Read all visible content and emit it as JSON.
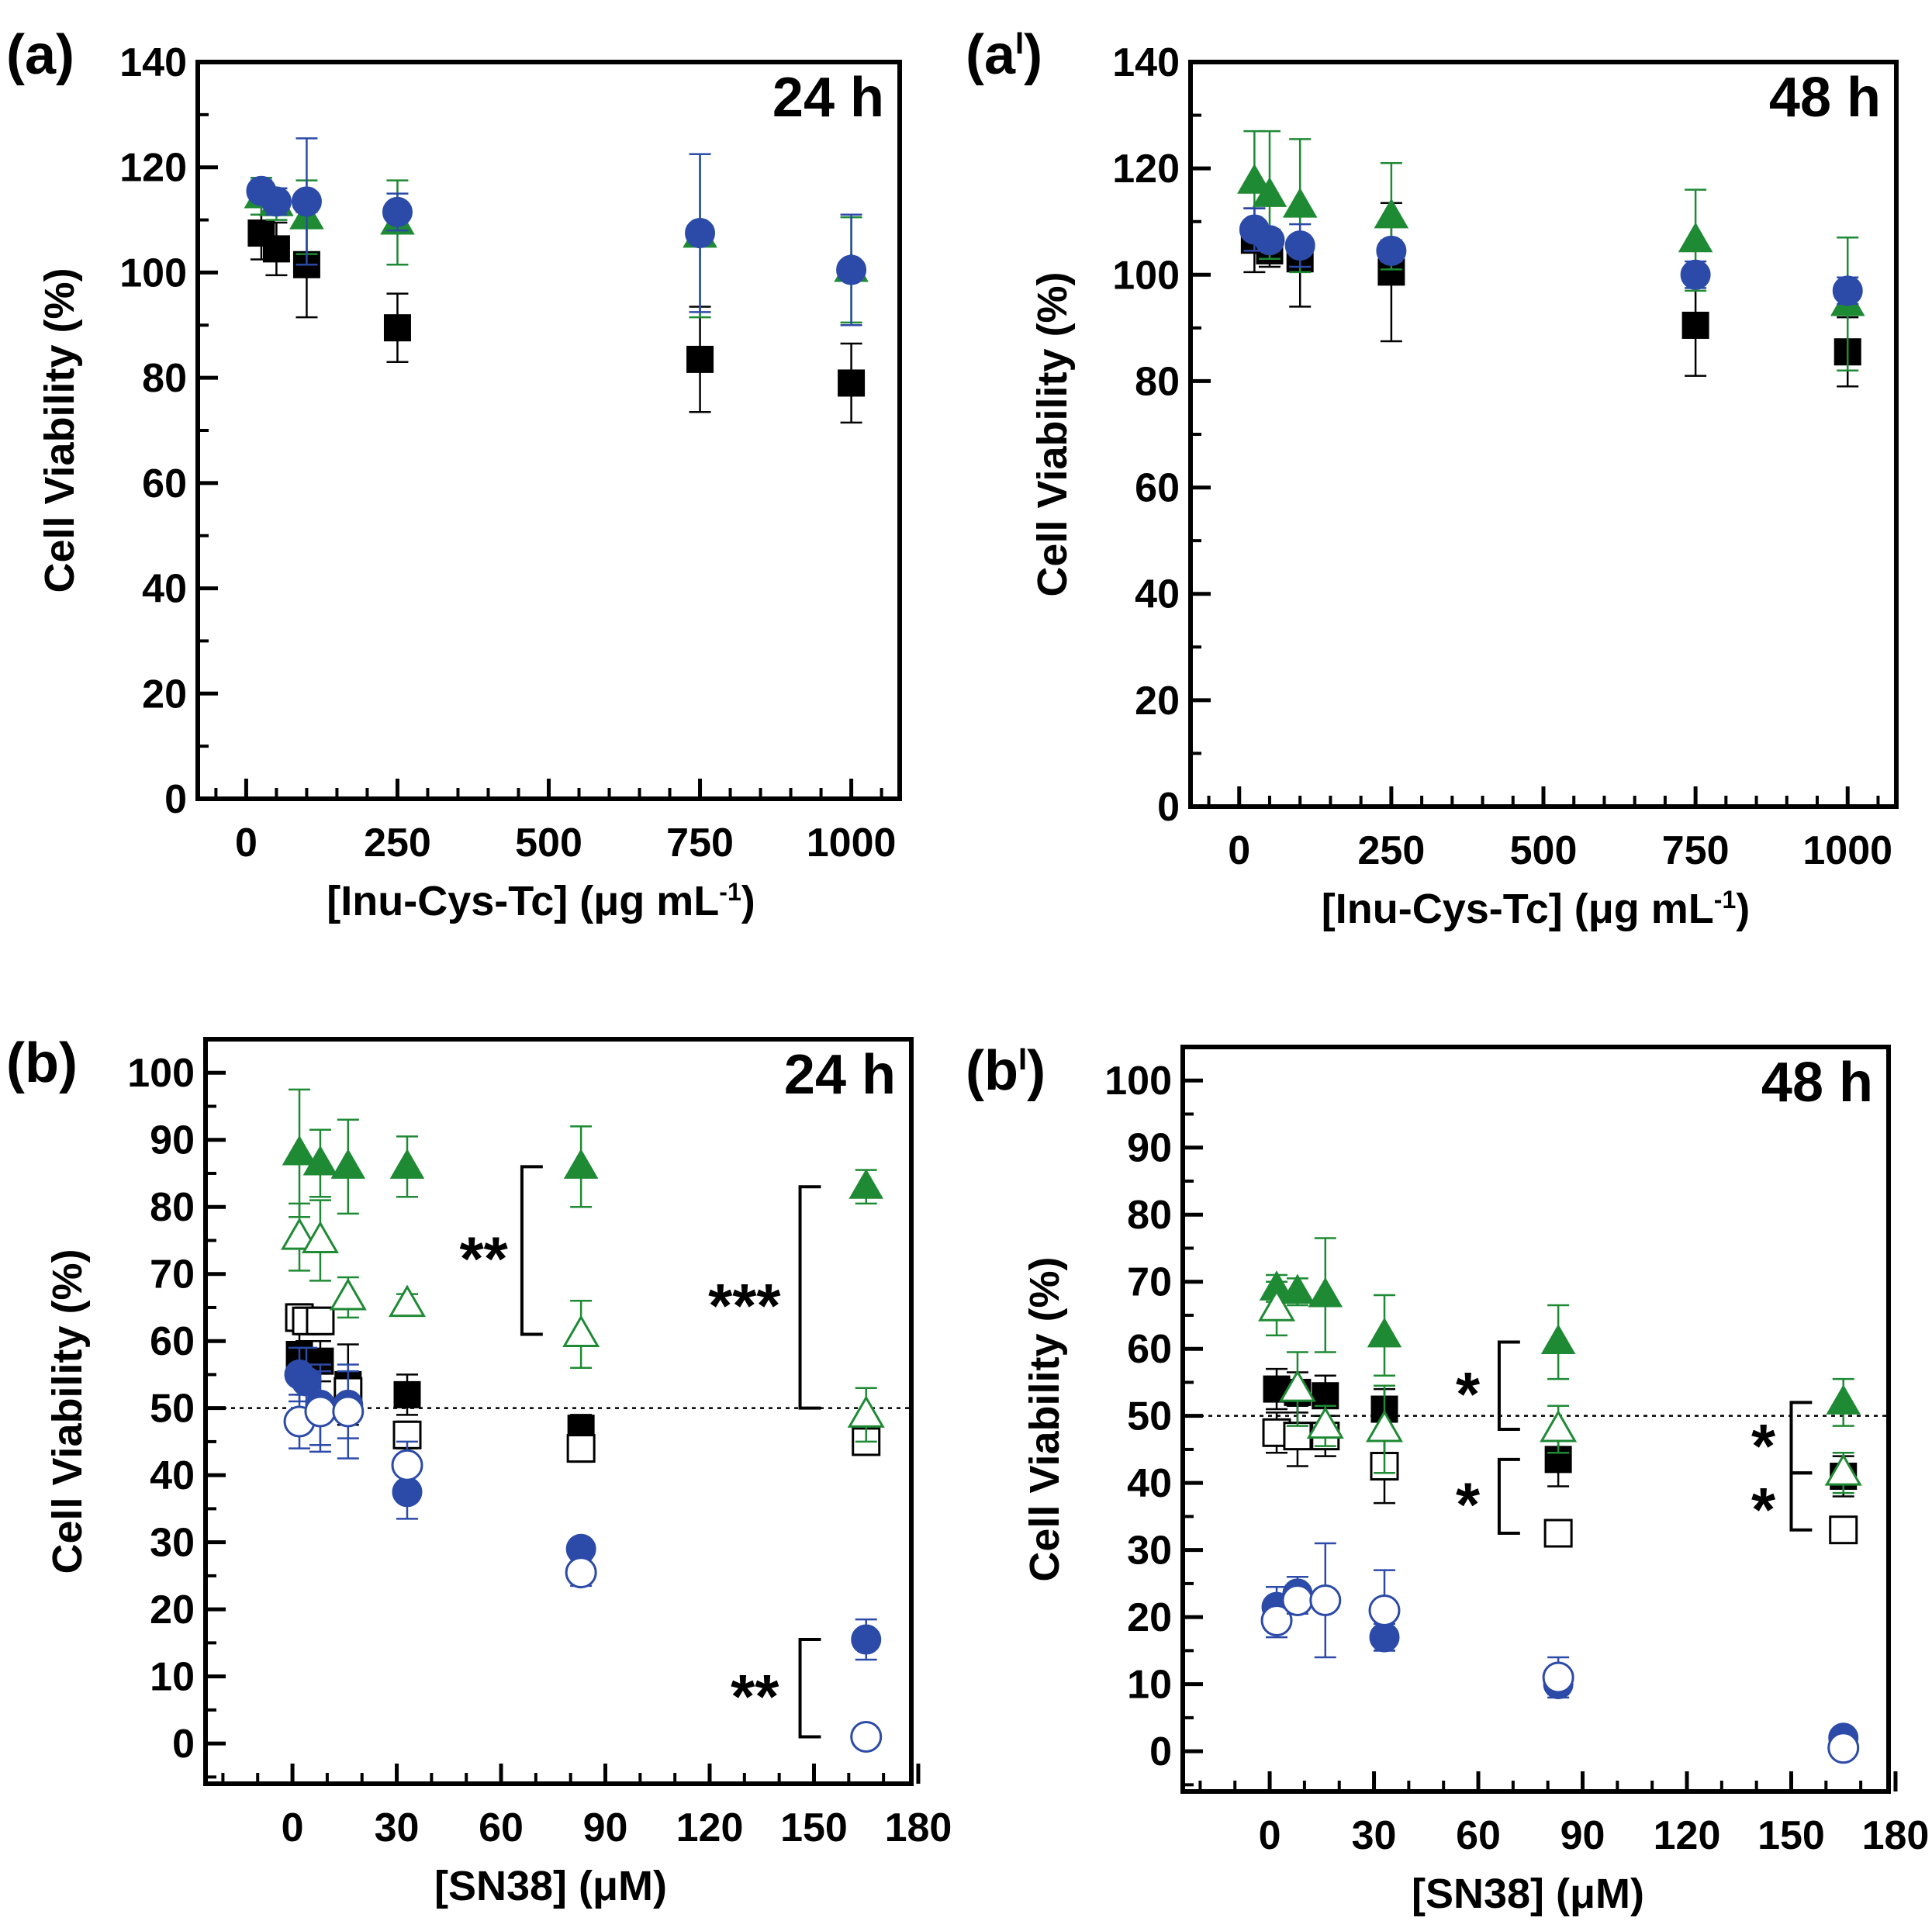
{
  "figure": {
    "colors": {
      "black": "#000000",
      "green": "#1e8a34",
      "blue": "#2c4aa8"
    }
  },
  "chart_data": [
    {
      "id": "a",
      "type": "scatter",
      "panel_label": "(a)",
      "panel_sup": "",
      "time_label": "24 h",
      "xlabel_main": "[Inu-Cys-Tc] (μg mL",
      "xlabel_sup": "-1",
      "xlabel_end": ")",
      "ylabel": "Cell Viability (%)",
      "xlim": [
        -80,
        1080
      ],
      "ylim": [
        0,
        140
      ],
      "xticks": [
        0,
        250,
        500,
        750,
        1000
      ],
      "yticks": [
        0,
        20,
        40,
        60,
        80,
        100,
        120,
        140
      ],
      "x_minor_step": 50,
      "y_minor_step": 10,
      "threshold": null,
      "series": [
        {
          "name": "black-square",
          "marker": "square",
          "filled": true,
          "color": "black",
          "x": [
            25,
            50,
            100,
            250,
            750,
            1000
          ],
          "y": [
            107.5,
            104.5,
            101.5,
            89.5,
            83.5,
            79
          ],
          "err": [
            5,
            5,
            10,
            6.5,
            10,
            7.5
          ]
        },
        {
          "name": "green-triangle",
          "marker": "triangle",
          "filled": true,
          "color": "green",
          "x": [
            25,
            50,
            100,
            250,
            750,
            1000
          ],
          "y": [
            114.5,
            113,
            110.5,
            109.5,
            107,
            100.5
          ],
          "err": [
            3.5,
            3,
            7,
            8,
            15.5,
            10
          ]
        },
        {
          "name": "blue-circle",
          "marker": "circle",
          "filled": true,
          "color": "blue",
          "x": [
            25,
            50,
            100,
            250,
            750,
            1000
          ],
          "y": [
            115.5,
            113.5,
            113.5,
            111.5,
            107.5,
            100.5
          ],
          "err": [
            2,
            2.5,
            12,
            3.5,
            15,
            10.5
          ]
        }
      ],
      "annotations": []
    },
    {
      "id": "a2",
      "type": "scatter",
      "panel_label": "(a",
      "panel_sup": "I",
      "time_label": "48 h",
      "xlabel_main": "[Inu-Cys-Tc] (μg mL",
      "xlabel_sup": "-1",
      "xlabel_end": ")",
      "ylabel": "Cell Viability (%)",
      "xlim": [
        -80,
        1080
      ],
      "ylim": [
        0,
        140
      ],
      "xticks": [
        0,
        250,
        500,
        750,
        1000
      ],
      "yticks": [
        0,
        20,
        40,
        60,
        80,
        100,
        120,
        140
      ],
      "x_minor_step": 50,
      "y_minor_step": 10,
      "threshold": null,
      "series": [
        {
          "name": "black-square",
          "marker": "square",
          "filled": true,
          "color": "black",
          "x": [
            25,
            50,
            100,
            250,
            750,
            1000
          ],
          "y": [
            106.5,
            104.5,
            103,
            100.5,
            90.5,
            85.5
          ],
          "err": [
            6,
            3,
            9,
            13,
            9.5,
            6.5
          ]
        },
        {
          "name": "green-triangle",
          "marker": "triangle",
          "filled": true,
          "color": "green",
          "x": [
            25,
            50,
            100,
            250,
            750,
            1000
          ],
          "y": [
            117.5,
            115,
            113,
            111,
            106.5,
            94.5
          ],
          "err": [
            9.5,
            12,
            12.5,
            10,
            9.5,
            12.5
          ]
        },
        {
          "name": "blue-circle",
          "marker": "circle",
          "filled": true,
          "color": "blue",
          "x": [
            25,
            50,
            100,
            250,
            750,
            1000
          ],
          "y": [
            108.5,
            106.5,
            105.5,
            104.5,
            100,
            97
          ],
          "err": [
            4,
            2,
            4,
            2,
            2.5,
            2.5
          ]
        }
      ],
      "annotations": []
    },
    {
      "id": "b",
      "type": "scatter",
      "panel_label": "(b)",
      "panel_sup": "",
      "time_label": "24 h",
      "xlabel_main": "[SN38] (μM)",
      "xlabel_sup": "",
      "xlabel_end": "",
      "ylabel": "Cell Viability (%)",
      "xlim": [
        -25,
        178
      ],
      "ylim": [
        -6,
        105
      ],
      "xticks": [
        0,
        30,
        60,
        90,
        120,
        150,
        180
      ],
      "yticks": [
        0,
        10,
        20,
        30,
        40,
        50,
        60,
        70,
        80,
        90,
        100
      ],
      "x_minor_step": 10,
      "y_minor_step": 5,
      "threshold": 50,
      "series": [
        {
          "name": "black-square-filled",
          "marker": "square",
          "filled": true,
          "color": "black",
          "x": [
            2,
            4,
            8,
            16,
            33,
            83,
            165
          ],
          "y": [
            58,
            56,
            57,
            53.5,
            52,
            47,
            45
          ],
          "err": [
            4,
            4,
            3,
            6,
            3,
            2,
            1.5
          ]
        },
        {
          "name": "black-square-open",
          "marker": "square",
          "filled": false,
          "color": "black",
          "x": [
            2,
            4,
            8,
            16,
            33,
            83,
            165
          ],
          "y": [
            63.5,
            63,
            63,
            52.5,
            46,
            44,
            45
          ],
          "err": [
            2,
            2,
            2,
            2,
            2,
            2,
            1.5
          ]
        },
        {
          "name": "green-triangle-filled",
          "marker": "triangle",
          "filled": true,
          "color": "green",
          "x": [
            2,
            8,
            16,
            33,
            83,
            165
          ],
          "y": [
            88,
            86.5,
            86,
            86,
            86,
            83
          ],
          "err": [
            9.5,
            5,
            7,
            4.5,
            6,
            2.5
          ]
        },
        {
          "name": "green-triangle-open",
          "marker": "triangle",
          "filled": false,
          "color": "green",
          "x": [
            2,
            8,
            16,
            33,
            83,
            165
          ],
          "y": [
            75.5,
            75,
            66.5,
            65.5,
            61,
            49
          ],
          "err": [
            5,
            6,
            3,
            1.5,
            5,
            4
          ]
        },
        {
          "name": "blue-circle-filled",
          "marker": "circle",
          "filled": true,
          "color": "blue",
          "x": [
            2,
            4,
            8,
            16,
            33,
            83,
            165
          ],
          "y": [
            55,
            54,
            50.5,
            50.5,
            37.5,
            29,
            15.5
          ],
          "err": [
            4,
            5,
            6,
            5,
            4,
            1.5,
            3
          ]
        },
        {
          "name": "blue-circle-open",
          "marker": "circle",
          "filled": false,
          "color": "blue",
          "x": [
            2,
            8,
            16,
            33,
            83,
            165
          ],
          "y": [
            48,
            49.5,
            49.5,
            41.5,
            25.5,
            1
          ],
          "err": [
            4,
            6,
            7,
            3.5,
            2,
            1
          ]
        }
      ],
      "annotations": [
        {
          "text": "**",
          "x1": 66,
          "y_top": 86,
          "y_bot": 61,
          "text_x": 55,
          "bracket_w": 6
        },
        {
          "text": "***",
          "x1": 146,
          "y_top": 83,
          "y_bot": 50,
          "text_x": 130,
          "bracket_w": 6
        },
        {
          "text": "**",
          "x1": 146,
          "y_top": 15.5,
          "y_bot": 1,
          "text_x": 133,
          "bracket_w": 6
        }
      ]
    },
    {
      "id": "b2",
      "type": "scatter",
      "panel_label": "(b",
      "panel_sup": "I",
      "time_label": "48 h",
      "xlabel_main": "[SN38] (μM)",
      "xlabel_sup": "",
      "xlabel_end": "",
      "ylabel": "Cell Viability (%)",
      "xlim": [
        -25,
        178
      ],
      "ylim": [
        -6,
        105
      ],
      "xticks": [
        0,
        30,
        60,
        90,
        120,
        150,
        180
      ],
      "yticks": [
        0,
        10,
        20,
        30,
        40,
        50,
        60,
        70,
        80,
        90,
        100
      ],
      "x_minor_step": 10,
      "y_minor_step": 5,
      "threshold": 50,
      "series": [
        {
          "name": "black-square-filled",
          "marker": "square",
          "filled": true,
          "color": "black",
          "x": [
            2,
            8,
            16,
            33,
            83,
            165
          ],
          "y": [
            54,
            53.5,
            53,
            51,
            43.5,
            41
          ],
          "err": [
            3,
            3,
            3,
            3,
            4,
            3
          ]
        },
        {
          "name": "black-square-open",
          "marker": "square",
          "filled": false,
          "color": "black",
          "x": [
            2,
            8,
            16,
            33,
            83,
            165
          ],
          "y": [
            47.5,
            47,
            47,
            42.5,
            32.5,
            33
          ],
          "err": [
            3,
            4.5,
            3,
            5.5,
            1.5,
            1.5
          ]
        },
        {
          "name": "green-triangle-filled",
          "marker": "triangle",
          "filled": true,
          "color": "green",
          "x": [
            2,
            8,
            16,
            33,
            83,
            165
          ],
          "y": [
            69,
            68.5,
            68,
            62,
            61,
            52
          ],
          "err": [
            2,
            2,
            8.5,
            6,
            5.5,
            3.5
          ]
        },
        {
          "name": "green-triangle-open",
          "marker": "triangle",
          "filled": false,
          "color": "green",
          "x": [
            2,
            8,
            16,
            33,
            83,
            165
          ],
          "y": [
            66,
            54,
            48.5,
            48,
            48,
            41.5
          ],
          "err": [
            4,
            5.5,
            3,
            6.5,
            3.5,
            3
          ]
        },
        {
          "name": "blue-circle-filled",
          "marker": "circle",
          "filled": true,
          "color": "blue",
          "x": [
            2,
            8,
            16,
            33,
            83,
            165
          ],
          "y": [
            21.5,
            23.5,
            22.5,
            17,
            10,
            2
          ],
          "err": [
            3,
            2.5,
            1.5,
            2,
            1.5,
            1
          ]
        },
        {
          "name": "blue-circle-open",
          "marker": "circle",
          "filled": false,
          "color": "blue",
          "x": [
            2,
            8,
            16,
            33,
            83,
            165
          ],
          "y": [
            19.5,
            22.5,
            22.5,
            21,
            11,
            0.5
          ],
          "err": [
            2.5,
            2,
            8.5,
            6,
            3,
            1.5
          ]
        }
      ],
      "annotations": [
        {
          "text": "*",
          "x1": 66,
          "y_top": 61,
          "y_bot": 48,
          "text_x": 57,
          "bracket_w": 6
        },
        {
          "text": "*",
          "x1": 66,
          "y_top": 43.5,
          "y_bot": 32.5,
          "text_x": 57,
          "bracket_w": 6
        },
        {
          "text": "*",
          "x1": 150,
          "y_top": 52,
          "y_bot": 41.5,
          "text_x": 142,
          "bracket_w": 6
        },
        {
          "text": "*",
          "x1": 150,
          "y_top": 41.5,
          "y_bot": 33,
          "text_x": 142,
          "bracket_w": 6
        }
      ]
    }
  ]
}
